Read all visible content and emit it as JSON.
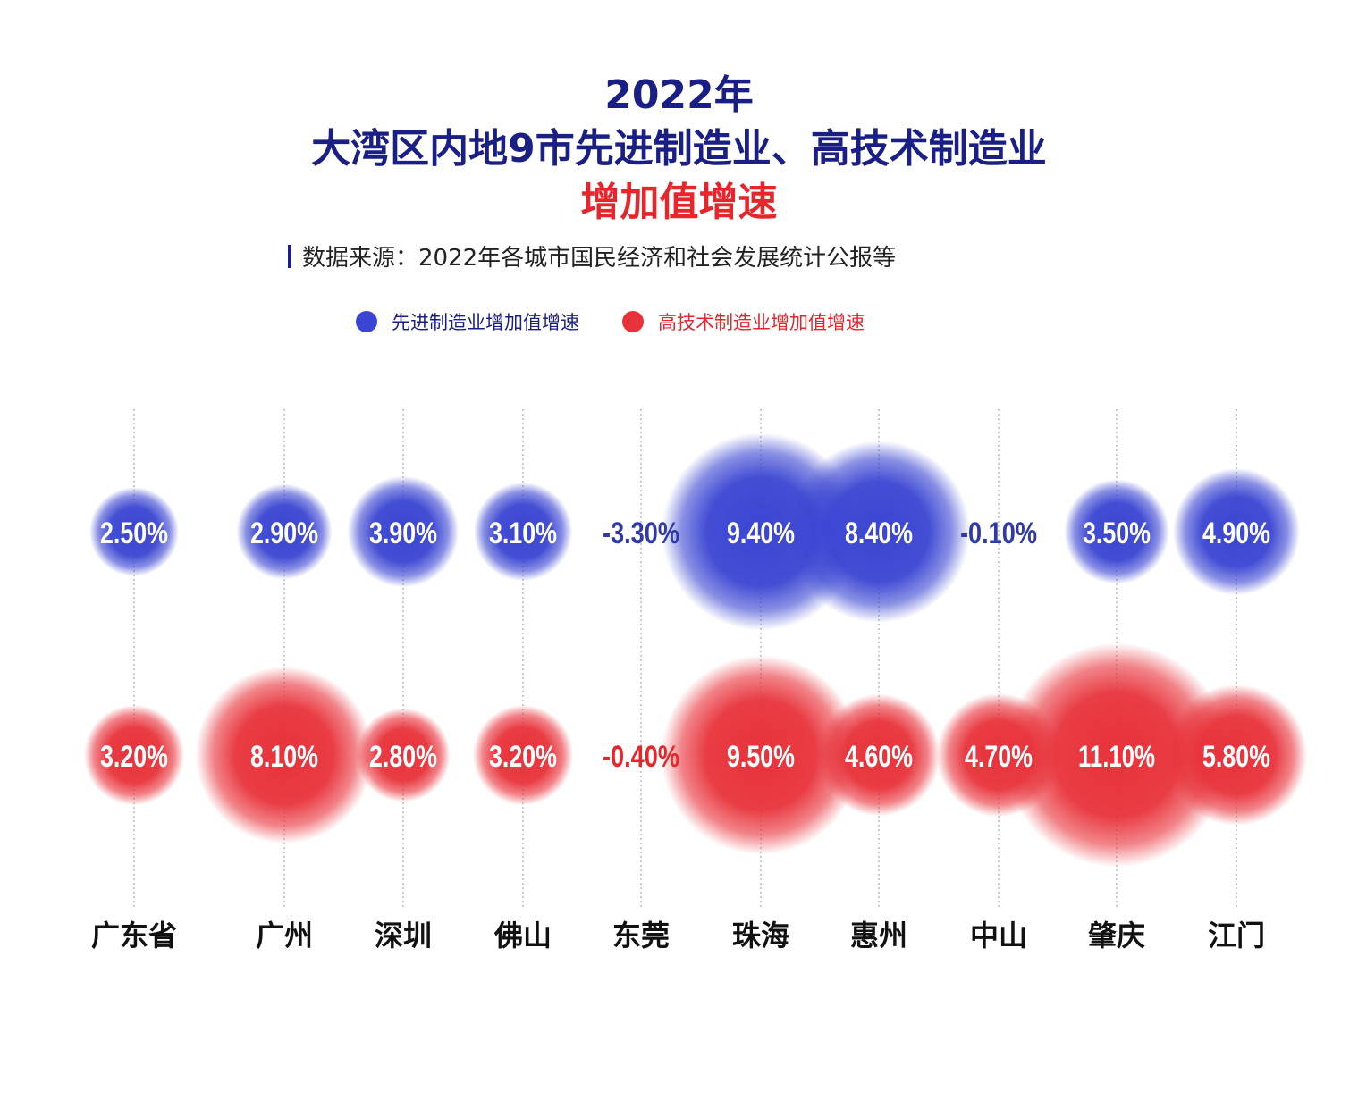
{
  "title": {
    "line1": "2022年",
    "line2": "大湾区内地9市先进制造业、高技术制造业",
    "line3": "增加值增速"
  },
  "source": "数据来源：2022年各城市国民经济和社会发展统计公报等",
  "legend": {
    "advanced": {
      "label": "先进制造业增加值增速",
      "color": "#3a45d2"
    },
    "hightech": {
      "label": "高技术制造业增加值增速",
      "color": "#e8323a"
    }
  },
  "colors": {
    "title_blue": "#1a1f86",
    "title_red": "#e5262c",
    "negative_blue": "#2f3aa6",
    "negative_red": "#e5262c"
  },
  "chart_data": {
    "type": "scatter",
    "categories": [
      "广东省",
      "广州",
      "深圳",
      "佛山",
      "东莞",
      "珠海",
      "惠州",
      "中山",
      "肇庆",
      "江门"
    ],
    "series": [
      {
        "name": "先进制造业增加值增速",
        "values": [
          2.5,
          2.9,
          3.9,
          3.1,
          -3.3,
          9.4,
          8.4,
          -0.1,
          3.5,
          4.9
        ],
        "labels": [
          "2.50%",
          "2.90%",
          "3.90%",
          "3.10%",
          "-3.30%",
          "9.40%",
          "8.40%",
          "-0.10%",
          "3.50%",
          "4.90%"
        ]
      },
      {
        "name": "高技术制造业增加值增速",
        "values": [
          3.2,
          8.1,
          2.8,
          3.2,
          -0.4,
          9.5,
          4.6,
          4.7,
          11.1,
          5.8
        ],
        "labels": [
          "3.20%",
          "8.10%",
          "2.80%",
          "3.20%",
          "-0.40%",
          "9.50%",
          "4.60%",
          "4.70%",
          "11.10%",
          "5.80%"
        ]
      }
    ],
    "encoding": "bubble size proportional to value"
  }
}
